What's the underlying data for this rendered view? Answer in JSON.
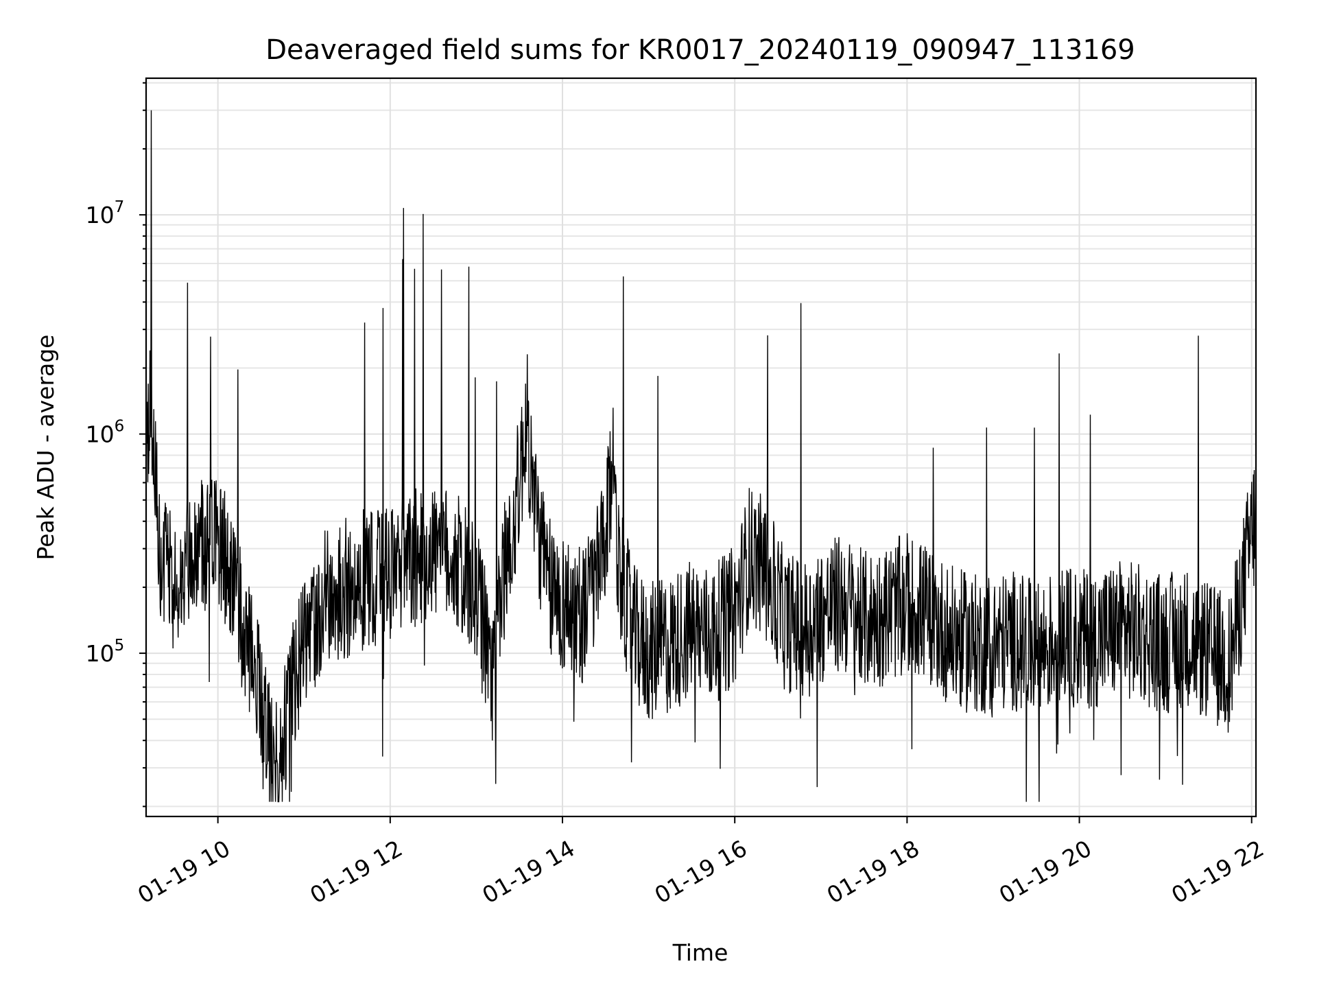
{
  "chart_data": {
    "type": "line",
    "title": "Deaveraged field sums for KR0017_20240119_090947_113169",
    "xlabel": "Time",
    "ylabel": "Peak ADU - average",
    "yscale": "log",
    "grid": true,
    "xlim": [
      "01-19 09:10",
      "01-19 22:03"
    ],
    "ylim": [
      18000,
      42000000
    ],
    "x_ticks": [
      "01-19 10",
      "01-19 12",
      "01-19 14",
      "01-19 16",
      "01-19 18",
      "01-19 20",
      "01-19 22"
    ],
    "y_ticks": [
      {
        "value": 100000,
        "base": "10",
        "exp": "5"
      },
      {
        "value": 1000000,
        "base": "10",
        "exp": "6"
      },
      {
        "value": 10000000,
        "base": "10",
        "exp": "7"
      }
    ],
    "series": [
      {
        "color": "#000000",
        "x": [
          "01-19 09:10",
          "01-19 09:13",
          "01-19 09:16",
          "01-19 09:20",
          "01-19 09:25",
          "01-19 09:30",
          "01-19 09:40",
          "01-19 09:50",
          "01-19 10:00",
          "01-19 10:10",
          "01-19 10:20",
          "01-19 10:30",
          "01-19 10:35",
          "01-19 10:40",
          "01-19 10:50",
          "01-19 11:00",
          "01-19 11:10",
          "01-19 11:20",
          "01-19 11:30",
          "01-19 11:45",
          "01-19 12:00",
          "01-19 12:15",
          "01-19 12:30",
          "01-19 12:45",
          "01-19 13:00",
          "01-19 13:10",
          "01-19 13:20",
          "01-19 13:30",
          "01-19 13:35",
          "01-19 13:40",
          "01-19 13:50",
          "01-19 14:00",
          "01-19 14:15",
          "01-19 14:30",
          "01-19 14:35",
          "01-19 14:40",
          "01-19 14:50",
          "01-19 15:00",
          "01-19 15:15",
          "01-19 15:30",
          "01-19 15:45",
          "01-19 16:00",
          "01-19 16:10",
          "01-19 16:20",
          "01-19 16:35",
          "01-19 16:50",
          "01-19 17:00",
          "01-19 17:15",
          "01-19 17:30",
          "01-19 17:45",
          "01-19 18:00",
          "01-19 18:15",
          "01-19 18:30",
          "01-19 18:45",
          "01-19 19:00",
          "01-19 19:15",
          "01-19 19:30",
          "01-19 19:45",
          "01-19 20:00",
          "01-19 20:15",
          "01-19 20:30",
          "01-19 20:45",
          "01-19 21:00",
          "01-19 21:15",
          "01-19 21:30",
          "01-19 21:45",
          "01-19 22:00",
          "01-19 22:03"
        ],
        "y": [
          700000,
          1500000,
          600000,
          300000,
          220000,
          200000,
          250000,
          300000,
          320000,
          220000,
          110000,
          70000,
          45000,
          28000,
          60000,
          110000,
          160000,
          190000,
          200000,
          220000,
          230000,
          260000,
          300000,
          270000,
          180000,
          90000,
          250000,
          600000,
          1200000,
          500000,
          200000,
          170000,
          150000,
          300000,
          800000,
          220000,
          120000,
          100000,
          110000,
          130000,
          120000,
          150000,
          280000,
          250000,
          140000,
          130000,
          150000,
          170000,
          140000,
          150000,
          170000,
          150000,
          120000,
          110000,
          110000,
          115000,
          100000,
          120000,
          115000,
          120000,
          130000,
          120000,
          110000,
          120000,
          100000,
          90000,
          350000,
          420000
        ]
      }
    ]
  }
}
